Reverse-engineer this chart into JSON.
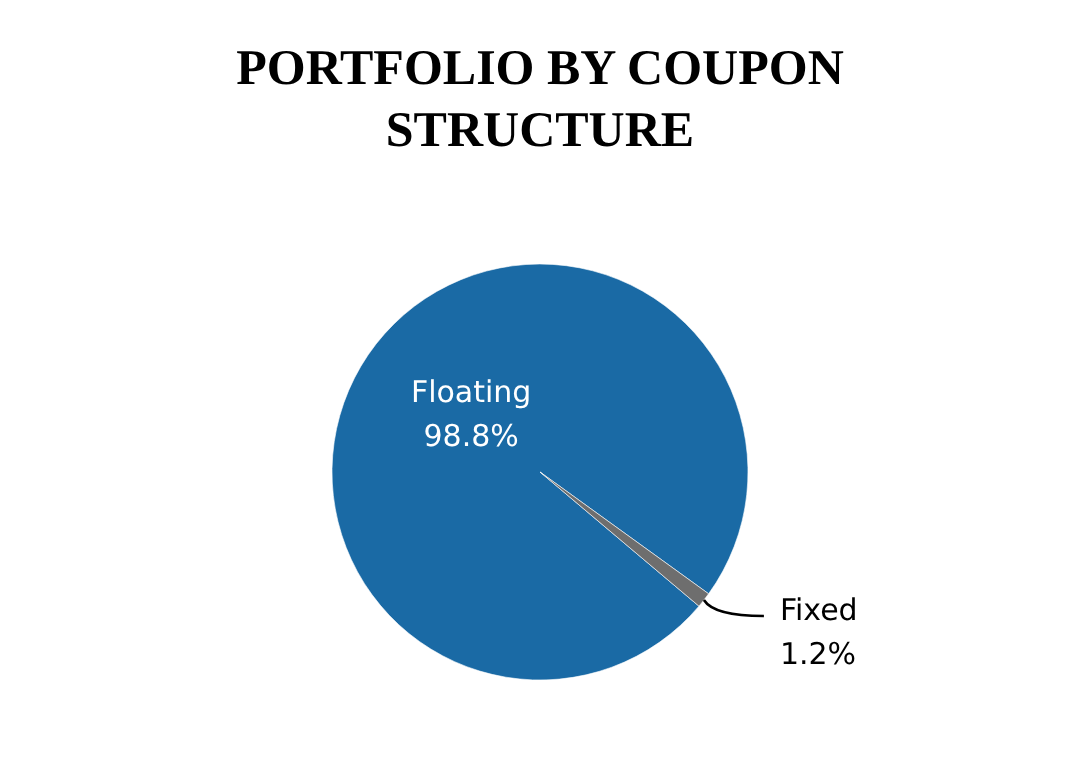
{
  "chart_data": {
    "type": "pie",
    "title": "PORTFOLIO BY COUPON STRUCTURE",
    "categories": [
      "Floating",
      "Fixed"
    ],
    "values": [
      98.8,
      1.2
    ],
    "colors": [
      "#1a6aa5",
      "#6e6e6e"
    ],
    "value_labels": [
      "98.8%",
      "1.2%"
    ]
  }
}
